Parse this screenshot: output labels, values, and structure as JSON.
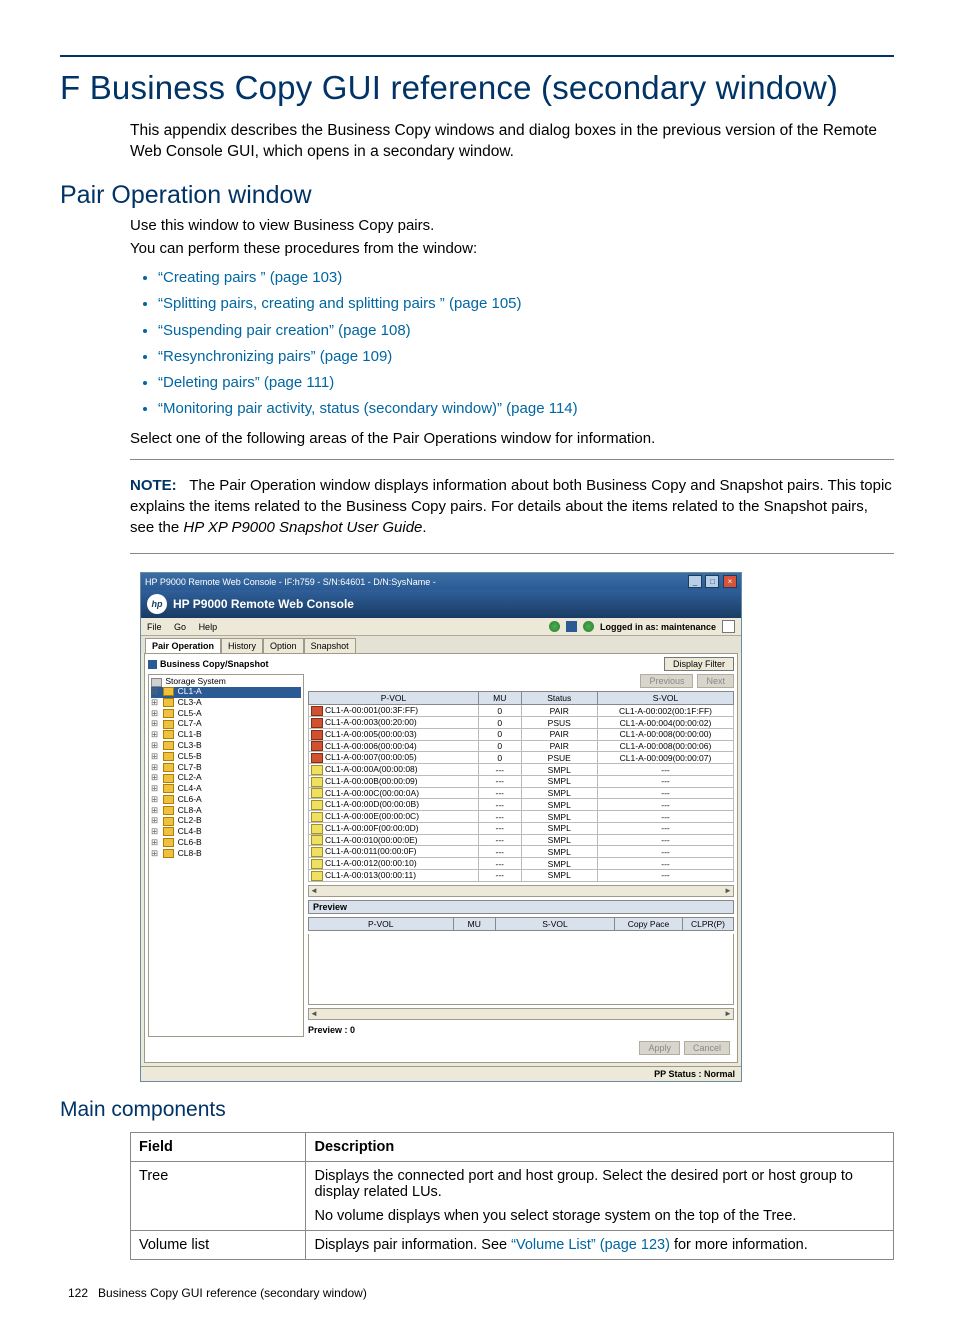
{
  "title": "F Business Copy GUI reference (secondary window)",
  "intro": "This appendix describes the Business Copy windows and dialog boxes in the previous version of the Remote Web Console GUI, which opens in a secondary window.",
  "section1": "Pair Operation window",
  "p1": "Use this window to view Business Copy pairs.",
  "p2": "You can perform these procedures from the window:",
  "links": [
    "“Creating pairs ” (page 103)",
    "“Splitting pairs, creating and splitting pairs ” (page 105)",
    "“Suspending pair creation” (page 108)",
    "“Resynchronizing pairs” (page 109)",
    "“Deleting pairs” (page 111)",
    "“Monitoring pair activity, status (secondary window)” (page 114)"
  ],
  "p3": "Select one of the following areas of the Pair Operations window for information.",
  "note_label": "NOTE:",
  "note_body": "The Pair Operation window displays information about both Business Copy and Snapshot pairs. This topic explains the items related to the Business Copy pairs. For details about the items related to the Snapshot pairs, see the ",
  "note_ref": "HP XP P9000 Snapshot User Guide",
  "note_tail": ".",
  "app": {
    "title": "HP P9000 Remote Web Console - IF:h759 - S/N:64601 - D/N:SysName -",
    "brand": "HP P9000 Remote Web Console",
    "menu_file": "File",
    "menu_go": "Go",
    "menu_help": "Help",
    "login": "Logged in as: maintenance",
    "tab1": "Pair Operation",
    "tab2": "History",
    "tab3": "Option",
    "tab4": "Snapshot",
    "panel_title": "Business Copy/Snapshot",
    "btn_display_filter": "Display Filter",
    "btn_previous": "Previous",
    "btn_next": "Next",
    "tree_root": "Storage System",
    "tree_sel": "CL1-A",
    "tree_items": [
      "CL3-A",
      "CL5-A",
      "CL7-A",
      "CL1-B",
      "CL3-B",
      "CL5-B",
      "CL7-B",
      "CL2-A",
      "CL4-A",
      "CL6-A",
      "CL8-A",
      "CL2-B",
      "CL4-B",
      "CL6-B",
      "CL8-B"
    ],
    "th_pvol": "P-VOL",
    "th_mu": "MU",
    "th_status": "Status",
    "th_svol": "S-VOL",
    "rows": [
      {
        "ic": "red",
        "p": "CL1-A-00:001(00:3F:FF)",
        "mu": "0",
        "st": "PAIR",
        "s": "CL1-A-00:002(00:1F:FF)"
      },
      {
        "ic": "red",
        "p": "CL1-A-00:003(00:20:00)",
        "mu": "0",
        "st": "PSUS",
        "s": "CL1-A-00:004(00:00:02)"
      },
      {
        "ic": "red",
        "p": "CL1-A-00:005(00:00:03)",
        "mu": "0",
        "st": "PAIR",
        "s": "CL1-A-00:008(00:00:00)"
      },
      {
        "ic": "red",
        "p": "CL1-A-00:006(00:00:04)",
        "mu": "0",
        "st": "PAIR",
        "s": "CL1-A-00:008(00:00:06)"
      },
      {
        "ic": "red",
        "p": "CL1-A-00:007(00:00:05)",
        "mu": "0",
        "st": "PSUE",
        "s": "CL1-A-00:009(00:00:07)"
      },
      {
        "ic": "yel",
        "p": "CL1-A-00:00A(00:00:08)",
        "mu": "---",
        "st": "SMPL",
        "s": "---"
      },
      {
        "ic": "yel",
        "p": "CL1-A-00:00B(00:00:09)",
        "mu": "---",
        "st": "SMPL",
        "s": "---"
      },
      {
        "ic": "yel",
        "p": "CL1-A-00:00C(00:00:0A)",
        "mu": "---",
        "st": "SMPL",
        "s": "---"
      },
      {
        "ic": "yel",
        "p": "CL1-A-00:00D(00:00:0B)",
        "mu": "---",
        "st": "SMPL",
        "s": "---"
      },
      {
        "ic": "yel",
        "p": "CL1-A-00:00E(00:00:0C)",
        "mu": "---",
        "st": "SMPL",
        "s": "---"
      },
      {
        "ic": "yel",
        "p": "CL1-A-00:00F(00:00:0D)",
        "mu": "---",
        "st": "SMPL",
        "s": "---"
      },
      {
        "ic": "yel",
        "p": "CL1-A-00:010(00:00:0E)",
        "mu": "---",
        "st": "SMPL",
        "s": "---"
      },
      {
        "ic": "yel",
        "p": "CL1-A-00:011(00:00:0F)",
        "mu": "---",
        "st": "SMPL",
        "s": "---"
      },
      {
        "ic": "yel",
        "p": "CL1-A-00:012(00:00:10)",
        "mu": "---",
        "st": "SMPL",
        "s": "---"
      },
      {
        "ic": "yel",
        "p": "CL1-A-00:013(00:00:11)",
        "mu": "---",
        "st": "SMPL",
        "s": "---"
      }
    ],
    "preview": "Preview",
    "pv_th1": "P-VOL",
    "pv_th2": "MU",
    "pv_th3": "S-VOL",
    "pv_th4": "Copy Pace",
    "pv_th5": "CLPR(P)",
    "preview_count": "Preview : 0",
    "apply": "Apply",
    "cancel": "Cancel",
    "pp_status": "PP Status : Normal"
  },
  "sub1": "Main components",
  "mc": {
    "h1": "Field",
    "h2": "Description",
    "r1f": "Tree",
    "r1d1": "Displays the connected port and host group. Select the desired port or host group to display related LUs.",
    "r1d2": "No volume displays when you select storage system on the top of the Tree.",
    "r2f": "Volume list",
    "r2d_pre": "Displays pair information. See ",
    "r2d_link": "“Volume List” (page 123)",
    "r2d_post": " for more information."
  },
  "footer_num": "122",
  "footer_txt": "Business Copy GUI reference (secondary window)"
}
